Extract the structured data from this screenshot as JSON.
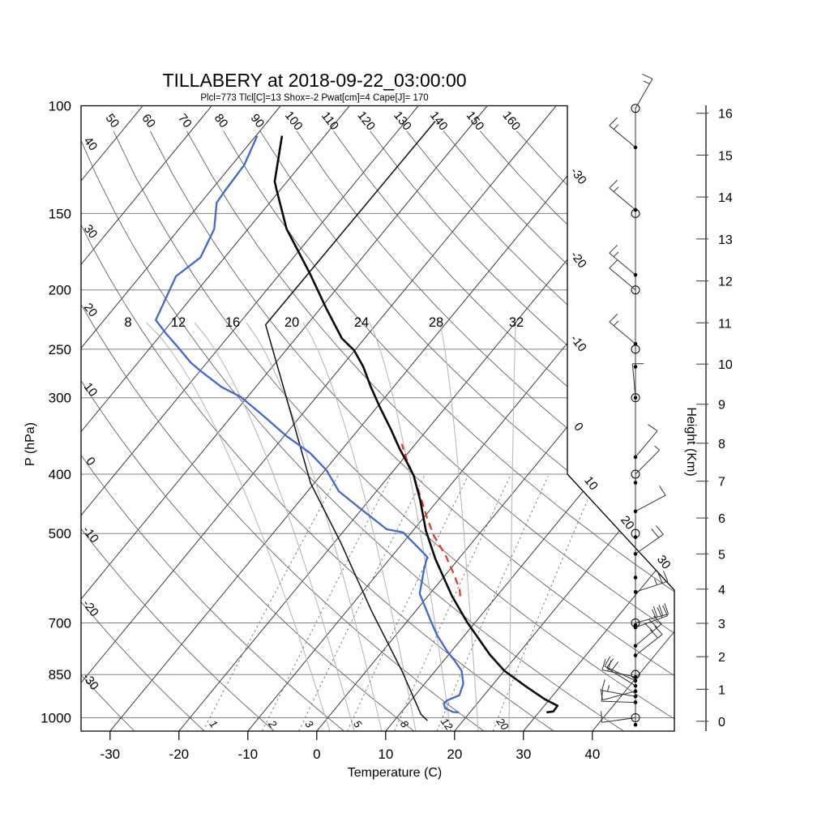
{
  "title": "TILLABERY at 2018-09-22_03:00:00",
  "params_line": "Plcl=773 Tlcl[C]=13 Shox=-2 Pwat[cm]=4 Cape[J]= 170",
  "axes": {
    "p_label": "P (hPa)",
    "t_label": "Temperature (C)",
    "h_label": "Height (Km)",
    "pressure_ticks": [
      100,
      150,
      200,
      250,
      300,
      400,
      500,
      700,
      850,
      1000
    ],
    "temp_ticks": [
      -30,
      -20,
      -10,
      0,
      10,
      20,
      30,
      40
    ],
    "height_ticks": [
      0,
      1,
      2,
      3,
      4,
      5,
      6,
      7,
      8,
      9,
      10,
      11,
      12,
      13,
      14,
      15,
      16
    ]
  },
  "colors": {
    "subtitle": "#b5532f",
    "isobar": "#808080",
    "isotherm": "#3c3c3c",
    "dry_adiabat": "#5a5a5a",
    "moist_adiabat": "#b9b9b9",
    "mixing_ratio": "#707070",
    "border": "#000000",
    "temperature": "#0a0a0a",
    "dewpoint": "#3d6bcc",
    "aux_line": "#111111",
    "parcel_red": "#e63322",
    "wind": "#333333"
  },
  "chart_data": {
    "type": "line",
    "subtype": "skewt-logp-sounding",
    "title": "TILLABERY at 2018-09-22_03:00:00",
    "xlabel": "Temperature (C)",
    "ylabel": "P (hPa)",
    "y2label": "Height (Km)",
    "xlim": [
      -35,
      47
    ],
    "p_range": [
      100,
      1050
    ],
    "grid": {
      "isobars_hpa": [
        100,
        150,
        200,
        250,
        300,
        400,
        500,
        700,
        850,
        1000
      ],
      "isotherm_step_c": 10,
      "isotherm_range_c": [
        -120,
        40
      ],
      "isotherm_edge_labels_right": [
        -30,
        -20,
        -10,
        0
      ],
      "isotherm_edge_labels_diagonal": [
        10,
        20,
        30
      ],
      "dry_adiabat_range_c": [
        -30,
        160
      ],
      "dry_adiabat_step_c": 10,
      "dry_adiabat_top_labels": [
        50,
        60,
        70,
        80,
        90,
        100,
        110,
        120,
        130,
        140,
        150,
        160
      ],
      "dry_adiabat_left_labels": [
        40,
        30,
        20,
        10,
        0,
        -10,
        -20,
        -30
      ],
      "moist_adiabats": [
        {
          "label": 8,
          "x_top": 158,
          "x_bottom": 407
        },
        {
          "label": 12,
          "x_top": 220,
          "x_bottom": 437
        },
        {
          "label": 16,
          "x_top": 287,
          "x_bottom": 471
        },
        {
          "label": 20,
          "x_top": 360,
          "x_bottom": 513
        },
        {
          "label": 24,
          "x_top": 446,
          "x_bottom": 556
        },
        {
          "label": 28,
          "x_top": 538,
          "x_bottom": 590
        },
        {
          "label": 32,
          "x_top": 637,
          "x_bottom": 628
        }
      ],
      "mixing_ratio_gkg": [
        1,
        2,
        3,
        5,
        8,
        12,
        20
      ]
    },
    "series": [
      {
        "name": "temperature",
        "units": [
          "hPa",
          "C"
        ],
        "points": [
          [
            980,
            31.1
          ],
          [
            977,
            32.0
          ],
          [
            956,
            31.9
          ],
          [
            933,
            29.3
          ],
          [
            891,
            25.2
          ],
          [
            838,
            20.0
          ],
          [
            789,
            16.0
          ],
          [
            698,
            8.8
          ],
          [
            633,
            3.5
          ],
          [
            551,
            -3.3
          ],
          [
            495,
            -8.1
          ],
          [
            441,
            -12.6
          ],
          [
            402,
            -16.5
          ],
          [
            385,
            -18.7
          ],
          [
            363,
            -21.8
          ],
          [
            338,
            -25.3
          ],
          [
            310,
            -29.7
          ],
          [
            288,
            -33.3
          ],
          [
            267,
            -36.8
          ],
          [
            251,
            -40.1
          ],
          [
            240,
            -43.3
          ],
          [
            215,
            -49.0
          ],
          [
            188,
            -55.7
          ],
          [
            159,
            -64.4
          ],
          [
            137,
            -70.6
          ],
          [
            133,
            -71.8
          ],
          [
            112,
            -76.2
          ]
        ]
      },
      {
        "name": "dewpoint",
        "units": [
          "hPa",
          "C"
        ],
        "points": [
          [
            980,
            18.4
          ],
          [
            979,
            17.5
          ],
          [
            965,
            15.9
          ],
          [
            947,
            15.1
          ],
          [
            936,
            15.3
          ],
          [
            919,
            16.4
          ],
          [
            880,
            15.6
          ],
          [
            838,
            13.8
          ],
          [
            803,
            11.3
          ],
          [
            779,
            9.4
          ],
          [
            733,
            6.0
          ],
          [
            698,
            3.6
          ],
          [
            627,
            -1.5
          ],
          [
            574,
            -3.7
          ],
          [
            546,
            -4.8
          ],
          [
            498,
            -11.2
          ],
          [
            492,
            -14.0
          ],
          [
            454,
            -20.5
          ],
          [
            427,
            -25.4
          ],
          [
            394,
            -29.8
          ],
          [
            370,
            -34.1
          ],
          [
            346,
            -39.8
          ],
          [
            323,
            -45.0
          ],
          [
            299,
            -51.0
          ],
          [
            288,
            -55.0
          ],
          [
            273,
            -59.4
          ],
          [
            263,
            -62.3
          ],
          [
            249,
            -65.8
          ],
          [
            236,
            -69.3
          ],
          [
            224,
            -72.5
          ],
          [
            190,
            -74.8
          ],
          [
            177,
            -73.5
          ],
          [
            159,
            -74.9
          ],
          [
            144,
            -77.7
          ],
          [
            138,
            -77.9
          ],
          [
            125,
            -78.2
          ],
          [
            112,
            -79.8
          ]
        ]
      },
      {
        "name": "aux_temperature_line",
        "units": [
          "hPa",
          "C"
        ],
        "points": [
          [
            1011,
            14.8
          ],
          [
            987,
            13.1
          ],
          [
            841,
            5.3
          ],
          [
            668,
            -6.5
          ],
          [
            518,
            -19.0
          ],
          [
            414,
            -30.5
          ],
          [
            299,
            -44.4
          ],
          [
            228,
            -56.0
          ],
          [
            106,
            -55.7
          ]
        ]
      },
      {
        "name": "parcel_moist_segment_red_dashed",
        "units": [
          "hPa",
          "C"
        ],
        "points": [
          [
            633,
            4.7
          ],
          [
            617,
            3.8
          ],
          [
            581,
            1.0
          ],
          [
            543,
            -2.3
          ],
          [
            503,
            -6.5
          ],
          [
            465,
            -10.1
          ],
          [
            435,
            -13.0
          ],
          [
            402,
            -16.5
          ],
          [
            382,
            -19.0
          ],
          [
            357,
            -22.0
          ]
        ]
      }
    ],
    "wind_barbs": [
      {
        "p": 101,
        "sym": "circle",
        "dir": 60,
        "f": 1,
        "h": 1
      },
      {
        "p": 117,
        "sym": "dot",
        "dir": 140,
        "f": 1,
        "h": 1
      },
      {
        "p": 148,
        "sym": "dot",
        "dir": 140,
        "f": 1,
        "h": 1
      },
      {
        "p": 150,
        "sym": "circle"
      },
      {
        "p": 189,
        "sym": "dot",
        "dir": 140,
        "f": 1,
        "h": 1
      },
      {
        "p": 200,
        "sym": "circle",
        "dir": 140,
        "f": 1,
        "h": 0
      },
      {
        "p": 245,
        "sym": "dot",
        "dir": 140,
        "f": 1,
        "h": 1
      },
      {
        "p": 250,
        "sym": "circle"
      },
      {
        "p": 267,
        "sym": "dot"
      },
      {
        "p": 300,
        "sym": "circle-dot",
        "dir": 95,
        "f": 1,
        "h": 0
      },
      {
        "p": 375,
        "sym": "dot",
        "dir": 50,
        "f": 1,
        "h": 0
      },
      {
        "p": 400,
        "sym": "circle",
        "dir": 45,
        "f": 0,
        "h": 1
      },
      {
        "p": 413,
        "sym": "dot"
      },
      {
        "p": 460,
        "sym": "dot",
        "dir": 28,
        "f": 1,
        "h": 0
      },
      {
        "p": 500,
        "sym": "circle"
      },
      {
        "p": 507,
        "sym": "dot"
      },
      {
        "p": 540,
        "sym": "dot",
        "dir": 35,
        "f": 2,
        "h": 0
      },
      {
        "p": 590,
        "sym": "dot"
      },
      {
        "p": 623,
        "sym": "dot",
        "dir": 18,
        "f": 2,
        "h": 1
      },
      {
        "p": 700,
        "sym": "circle",
        "dir": 15,
        "f": 3,
        "h": 0
      },
      {
        "p": 706,
        "sym": "dot"
      },
      {
        "p": 712,
        "sym": "dot",
        "dir": 20,
        "f": 3,
        "h": 0
      },
      {
        "p": 763,
        "sym": "dot",
        "dir": 40,
        "f": 3,
        "h": 0
      },
      {
        "p": 791,
        "sym": "dot",
        "dir": 38,
        "f": 2,
        "h": 0
      },
      {
        "p": 850,
        "sym": "circle"
      },
      {
        "p": 858,
        "sym": "dot",
        "dir": 168,
        "f": 2,
        "h": 0
      },
      {
        "p": 870,
        "sym": "dot",
        "dir": 155,
        "f": 1,
        "h": 0
      },
      {
        "p": 887,
        "sym": "dot",
        "dir": 148,
        "f": 2,
        "h": 0
      },
      {
        "p": 905,
        "sym": "dot",
        "dir": 195,
        "f": 1,
        "h": 0
      },
      {
        "p": 923,
        "sym": "dot",
        "dir": 170,
        "f": 1,
        "h": 1
      },
      {
        "p": 944,
        "sym": "dot",
        "dir": 178,
        "f": 1,
        "h": 0
      },
      {
        "p": 1000,
        "sym": "circle",
        "dir": 188,
        "f": 1,
        "h": 0
      },
      {
        "p": 1027,
        "sym": "dot"
      }
    ]
  }
}
